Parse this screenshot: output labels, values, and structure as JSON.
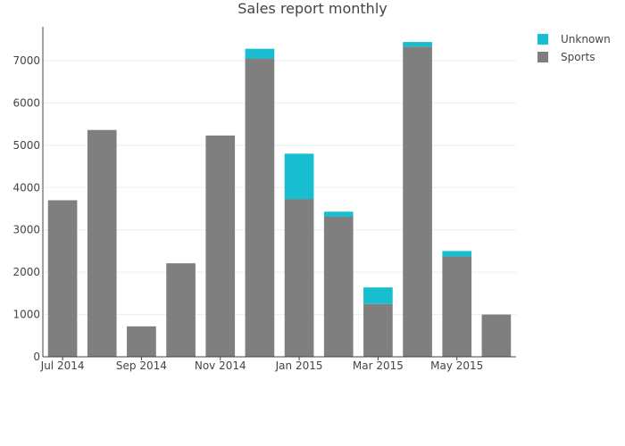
{
  "chart_data": {
    "type": "bar",
    "title": "Sales report monthly",
    "barmode": "stacked",
    "categories": [
      "Jul 2014",
      "Aug 2014",
      "Sep 2014",
      "Oct 2014",
      "Nov 2014",
      "Dec 2014",
      "Jan 2015",
      "Feb 2015",
      "Mar 2015",
      "Apr 2015",
      "May 2015",
      "Jun 2015"
    ],
    "x_tick_labels": [
      "Jul 2014",
      "Sep 2014",
      "Nov 2014",
      "Jan 2015",
      "Mar 2015",
      "May 2015"
    ],
    "y_ticks": [
      0,
      1000,
      2000,
      3000,
      4000,
      5000,
      6000,
      7000
    ],
    "ylim": [
      0,
      7800
    ],
    "grid": true,
    "legend_position": "top-right",
    "series": [
      {
        "name": "Sports",
        "color": "#7f7f7f",
        "values": [
          3700,
          5360,
          720,
          2210,
          5230,
          7050,
          3730,
          3310,
          1250,
          7330,
          2370,
          1000
        ]
      },
      {
        "name": "Unknown",
        "color": "#17becf",
        "values": [
          0,
          0,
          0,
          0,
          0,
          230,
          1070,
          120,
          390,
          110,
          130,
          0
        ]
      }
    ],
    "legend_order": [
      "Unknown",
      "Sports"
    ]
  }
}
